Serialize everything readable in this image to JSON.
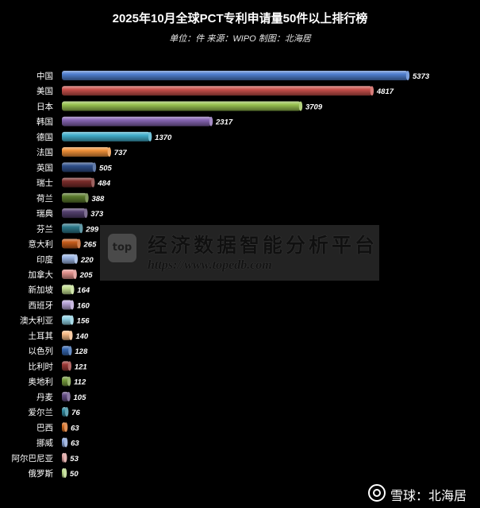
{
  "chart_data": {
    "type": "bar",
    "orientation": "horizontal",
    "title": "2025年10月全球PCT专利申请量50件以上排行榜",
    "subtitle": "单位：件 来源：WIPO 制图：北海居",
    "categories": [
      "中国",
      "美国",
      "日本",
      "韩国",
      "德国",
      "法国",
      "英国",
      "瑞士",
      "荷兰",
      "瑞典",
      "芬兰",
      "意大利",
      "印度",
      "加拿大",
      "新加坡",
      "西班牙",
      "澳大利亚",
      "土耳其",
      "以色列",
      "比利时",
      "奥地利",
      "丹麦",
      "爱尔兰",
      "巴西",
      "挪威",
      "阿尔巴尼亚",
      "俄罗斯"
    ],
    "values": [
      5373,
      4817,
      3709,
      2317,
      1370,
      737,
      505,
      484,
      388,
      373,
      299,
      265,
      220,
      205,
      164,
      160,
      156,
      140,
      128,
      121,
      112,
      105,
      76,
      63,
      63,
      53,
      50
    ],
    "bar_colors": [
      "#4f7fd0",
      "#c8504b",
      "#98c150",
      "#8665b2",
      "#41aecb",
      "#ef9038",
      "#2e4f8a",
      "#7a2c2a",
      "#5a7a2c",
      "#54406e",
      "#2c7788",
      "#c45b1a",
      "#9ab4e2",
      "#e08f8b",
      "#c2dd92",
      "#b7a3d6",
      "#8fd0e2",
      "#f7bb87",
      "#3465ad",
      "#9c3836",
      "#779b3e",
      "#664e86",
      "#32899e",
      "#d56d22",
      "#88a2d6",
      "#d99c9a",
      "#b5d683"
    ],
    "xlim": [
      0,
      5373
    ],
    "grid": false,
    "legend": "none",
    "data_labels": true
  },
  "watermark": {
    "logo": "top",
    "text": "经济数据智能分析平台",
    "url": "https://www.topedb.com"
  },
  "footer": {
    "brand": "雪球：北海居"
  }
}
